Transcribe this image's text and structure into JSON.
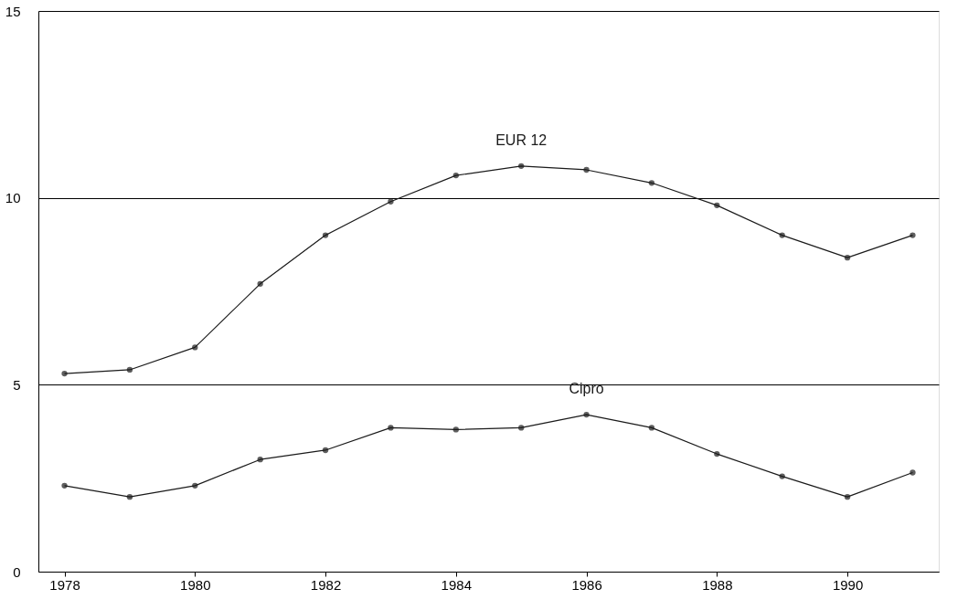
{
  "chart_data": {
    "type": "line",
    "x": [
      1978,
      1979,
      1980,
      1981,
      1982,
      1983,
      1984,
      1985,
      1986,
      1987,
      1988,
      1989,
      1990,
      1991
    ],
    "series": [
      {
        "name": "EUR 12",
        "color": "#1a1a1a",
        "values": [
          5.3,
          5.4,
          6.0,
          7.7,
          9.0,
          9.9,
          10.6,
          10.85,
          10.75,
          10.4,
          9.8,
          9.0,
          8.4,
          9.0
        ]
      },
      {
        "name": "Cipro",
        "color": "#1a1a1a",
        "values": [
          2.3,
          2.0,
          2.3,
          3.0,
          3.25,
          3.85,
          3.8,
          3.85,
          4.2,
          3.85,
          3.15,
          2.55,
          2.0,
          2.65
        ]
      }
    ],
    "xlim": [
      1977.6,
      1991.4
    ],
    "xticks": [
      1978,
      1980,
      1982,
      1984,
      1986,
      1988,
      1990
    ],
    "ylim": [
      0,
      15
    ],
    "yticks": [
      0,
      5,
      10,
      15
    ],
    "grid": "y",
    "marker": "circle",
    "line_style": "solid",
    "legend": false
  }
}
